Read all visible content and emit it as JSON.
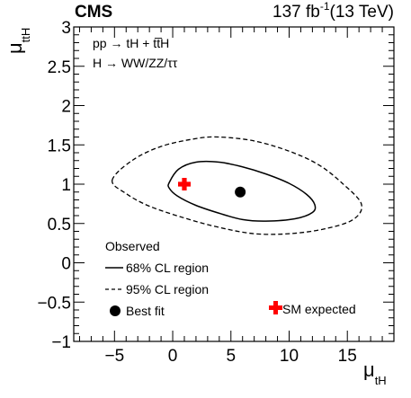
{
  "chart_data": {
    "type": "contour",
    "experiment": "CMS",
    "luminosity_text": "137 fb",
    "luminosity_sup": "-1",
    "energy_text": "(13 TeV)",
    "process_line1": "pp → tH + tt̅H",
    "process_line2": "H → WW/ZZ/ττ",
    "xlabel": "μ",
    "xlabel_sub": "tH",
    "ylabel": "μ",
    "ylabel_sub": "ttH",
    "xlim": [
      -8.5,
      19
    ],
    "ylim": [
      -1,
      3
    ],
    "xticks": [
      -5,
      0,
      5,
      10,
      15
    ],
    "xtick_labels": [
      "−5",
      "0",
      "5",
      "10",
      "15"
    ],
    "yticks": [
      -1,
      -0.5,
      0,
      0.5,
      1,
      1.5,
      2,
      2.5,
      3
    ],
    "ytick_labels": [
      "−1",
      "−0.5",
      "0",
      "0.5",
      "1",
      "1.5",
      "2",
      "2.5",
      "3"
    ],
    "best_fit": {
      "x": 5.8,
      "y": 0.9
    },
    "sm_expected": {
      "x": 1,
      "y": 1
    },
    "contours": [
      {
        "name": "68% CL region",
        "style": "solid",
        "points": [
          [
            -0.3,
            1.02
          ],
          [
            0.5,
            1.19
          ],
          [
            2,
            1.28
          ],
          [
            4,
            1.28
          ],
          [
            6,
            1.22
          ],
          [
            8,
            1.13
          ],
          [
            10,
            1.01
          ],
          [
            11.5,
            0.87
          ],
          [
            12.2,
            0.74
          ],
          [
            12,
            0.64
          ],
          [
            10.5,
            0.56
          ],
          [
            8,
            0.53
          ],
          [
            6,
            0.55
          ],
          [
            4,
            0.63
          ],
          [
            2,
            0.73
          ],
          [
            0.4,
            0.85
          ],
          [
            -0.3,
            0.95
          ],
          [
            -0.3,
            1.02
          ]
        ]
      },
      {
        "name": "95% CL region",
        "style": "dashed",
        "points": [
          [
            -5.2,
            1.05
          ],
          [
            -3.5,
            1.3
          ],
          [
            -1,
            1.48
          ],
          [
            2,
            1.58
          ],
          [
            4,
            1.6
          ],
          [
            7,
            1.55
          ],
          [
            10,
            1.42
          ],
          [
            12.5,
            1.25
          ],
          [
            14.5,
            1.02
          ],
          [
            16.2,
            0.75
          ],
          [
            15.5,
            0.55
          ],
          [
            13,
            0.43
          ],
          [
            10,
            0.37
          ],
          [
            7,
            0.37
          ],
          [
            4,
            0.45
          ],
          [
            1,
            0.57
          ],
          [
            -2,
            0.72
          ],
          [
            -4,
            0.88
          ],
          [
            -5.2,
            1.05
          ]
        ]
      }
    ],
    "legend": {
      "title": "Observed",
      "items": [
        "68% CL region",
        "95% CL region",
        "Best fit"
      ],
      "sm_label": "SM expected"
    }
  }
}
